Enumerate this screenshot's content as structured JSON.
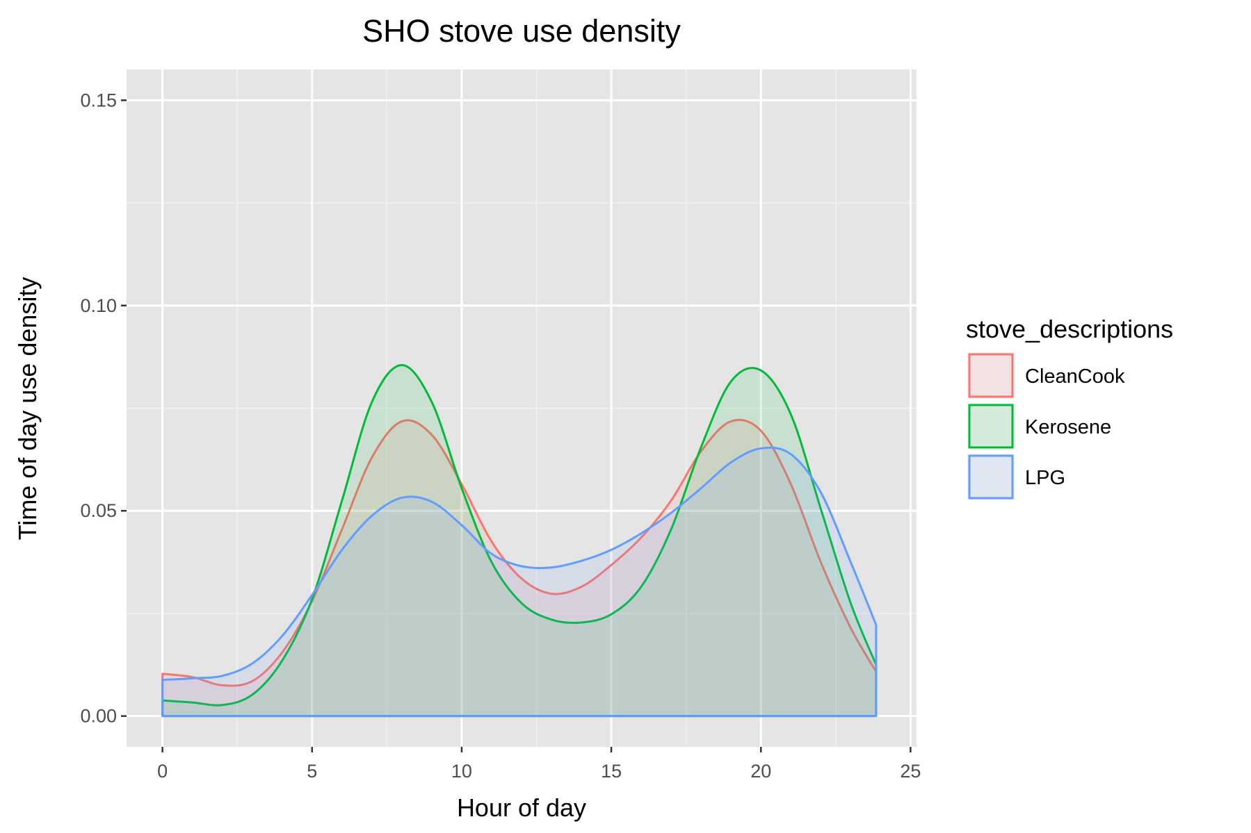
{
  "chart_data": {
    "type": "area",
    "title": "SHO stove use density",
    "xlabel": "Hour of day",
    "ylabel": "Time of day use density",
    "xlim": [
      -1.2,
      25.2
    ],
    "ylim": [
      -0.0075,
      0.1575
    ],
    "x_ticks": [
      0,
      5,
      10,
      15,
      20,
      25
    ],
    "x_tick_labels": [
      "0",
      "5",
      "10",
      "15",
      "20",
      "25"
    ],
    "y_ticks": [
      0.0,
      0.05,
      0.1,
      0.15
    ],
    "y_tick_labels": [
      "0.00",
      "0.05",
      "0.10",
      "0.15"
    ],
    "grid": true,
    "legend_title": "stove_descriptions",
    "legend_position": "right",
    "x": [
      0,
      1,
      2,
      3,
      4,
      5,
      6,
      7,
      8,
      9,
      10,
      11,
      12,
      13,
      14,
      15,
      16,
      17,
      18,
      19,
      20,
      21,
      22,
      23,
      23.85
    ],
    "series": [
      {
        "name": "CleanCook",
        "color": "#F8766D",
        "fill": "rgba(248,118,109,0.12)",
        "values": [
          0.0103,
          0.0095,
          0.0075,
          0.0085,
          0.0155,
          0.028,
          0.0455,
          0.063,
          0.0718,
          0.0685,
          0.0565,
          0.0425,
          0.0335,
          0.0298,
          0.0315,
          0.0368,
          0.0435,
          0.0525,
          0.0645,
          0.0718,
          0.0695,
          0.0565,
          0.0375,
          0.0215,
          0.0108
        ]
      },
      {
        "name": "Kerosene",
        "color": "#00BA38",
        "fill": "rgba(0,186,56,0.12)",
        "values": [
          0.0038,
          0.0033,
          0.0027,
          0.0052,
          0.0135,
          0.0285,
          0.0525,
          0.0765,
          0.0855,
          0.0765,
          0.0555,
          0.0375,
          0.0275,
          0.0235,
          0.0228,
          0.0248,
          0.0315,
          0.0455,
          0.0655,
          0.0815,
          0.0842,
          0.0735,
          0.0505,
          0.0275,
          0.0125
        ]
      },
      {
        "name": "LPG",
        "color": "#619CFF",
        "fill": "rgba(97,156,255,0.12)",
        "values": [
          0.0088,
          0.0092,
          0.0098,
          0.0128,
          0.0195,
          0.0295,
          0.0405,
          0.0488,
          0.0532,
          0.0522,
          0.0465,
          0.0395,
          0.0365,
          0.0362,
          0.0378,
          0.0405,
          0.0445,
          0.0495,
          0.0555,
          0.0618,
          0.0652,
          0.0638,
          0.0545,
          0.0375,
          0.0222
        ]
      }
    ]
  }
}
